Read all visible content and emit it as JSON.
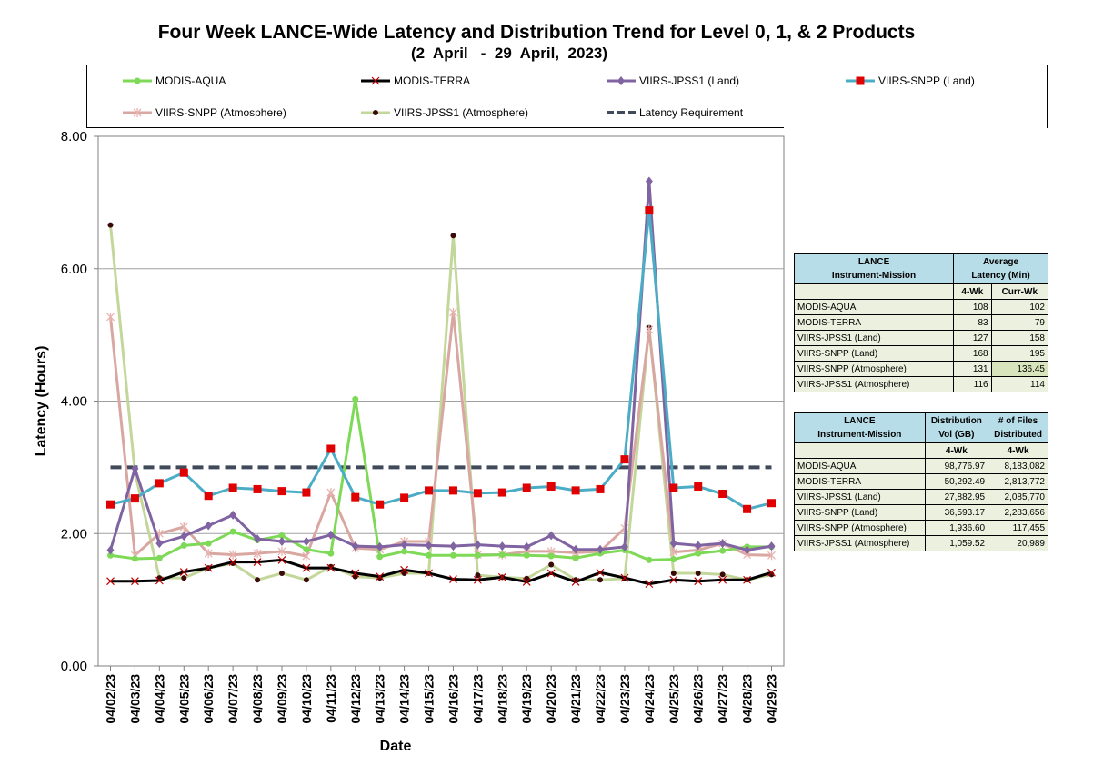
{
  "chart_data": {
    "type": "line",
    "title": "Four Week LANCE-Wide Latency and Distribution Trend for Level 0, 1, & 2 Products",
    "subtitle": "(2  April   -  29  April,  2023)",
    "xlabel": "Date",
    "ylabel": "Latency (Hours)",
    "ylim": [
      0,
      8
    ],
    "yticks": [
      "0.00",
      "2.00",
      "4.00",
      "6.00",
      "8.00"
    ],
    "grid": "horizontal",
    "legend_position": "top",
    "categories": [
      "04/02/23",
      "04/03/23",
      "04/04/23",
      "04/05/23",
      "04/06/23",
      "04/07/23",
      "04/08/23",
      "04/09/23",
      "04/10/23",
      "04/11/23",
      "04/12/23",
      "04/13/23",
      "04/14/23",
      "04/15/23",
      "04/16/23",
      "04/17/23",
      "04/18/23",
      "04/19/23",
      "04/20/23",
      "04/21/23",
      "04/22/23",
      "04/23/23",
      "04/24/23",
      "04/25/23",
      "04/26/23",
      "04/27/23",
      "04/28/23",
      "04/29/23"
    ],
    "series": [
      {
        "name": "MODIS-AQUA",
        "color": "#7ed957",
        "marker": "circle",
        "values": [
          1.67,
          1.62,
          1.63,
          1.82,
          1.85,
          2.03,
          1.9,
          1.97,
          1.76,
          1.7,
          4.03,
          1.65,
          1.73,
          1.67,
          1.67,
          1.67,
          1.68,
          1.67,
          1.66,
          1.63,
          1.7,
          1.75,
          1.6,
          1.61,
          1.7,
          1.74,
          1.8,
          1.8
        ]
      },
      {
        "name": "MODIS-TERRA",
        "color": "#000000",
        "marker": "x",
        "values": [
          1.28,
          1.28,
          1.29,
          1.42,
          1.48,
          1.57,
          1.57,
          1.6,
          1.48,
          1.48,
          1.4,
          1.35,
          1.45,
          1.4,
          1.31,
          1.3,
          1.34,
          1.27,
          1.4,
          1.27,
          1.41,
          1.33,
          1.24,
          1.3,
          1.28,
          1.3,
          1.3,
          1.41
        ]
      },
      {
        "name": "VIIRS-JPSS1 (Land)",
        "color": "#8064a2",
        "marker": "diamond",
        "values": [
          1.75,
          2.98,
          1.85,
          1.96,
          2.12,
          2.28,
          1.92,
          1.88,
          1.88,
          1.98,
          1.81,
          1.8,
          1.83,
          1.82,
          1.81,
          1.83,
          1.81,
          1.8,
          1.97,
          1.76,
          1.76,
          1.8,
          7.32,
          1.85,
          1.82,
          1.85,
          1.75,
          1.81
        ]
      },
      {
        "name": "VIIRS-SNPP (Land)",
        "color": "#4bacc6",
        "marker": "square",
        "values": [
          2.44,
          2.53,
          2.76,
          2.92,
          2.57,
          2.69,
          2.67,
          2.64,
          2.62,
          3.28,
          2.55,
          2.44,
          2.54,
          2.65,
          2.65,
          2.61,
          2.62,
          2.69,
          2.71,
          2.65,
          2.67,
          3.12,
          6.88,
          2.69,
          2.71,
          2.6,
          2.37,
          2.46
        ]
      },
      {
        "name": "VIIRS-SNPP (Atmosphere)",
        "color": "#d9a7a2",
        "marker": "asterisk",
        "values": [
          5.27,
          1.67,
          2.0,
          2.1,
          1.7,
          1.68,
          1.7,
          1.73,
          1.66,
          2.62,
          1.78,
          1.76,
          1.88,
          1.88,
          5.34,
          1.68,
          1.68,
          1.73,
          1.73,
          1.71,
          1.73,
          2.08,
          5.08,
          1.72,
          1.75,
          1.85,
          1.68,
          1.67
        ]
      },
      {
        "name": "VIIRS-JPSS1 (Atmosphere)",
        "color": "#c4d79b",
        "marker": "dot",
        "values": [
          6.66,
          2.92,
          1.33,
          1.33,
          1.48,
          1.55,
          1.3,
          1.4,
          1.3,
          1.5,
          1.35,
          1.33,
          1.4,
          1.4,
          6.5,
          1.37,
          1.34,
          1.32,
          1.53,
          1.3,
          1.3,
          1.32,
          5.11,
          1.4,
          1.4,
          1.38,
          1.3,
          1.38
        ]
      },
      {
        "name": "Latency Requirement",
        "color": "#404a5a",
        "marker": "dash",
        "values": [
          3,
          3,
          3,
          3,
          3,
          3,
          3,
          3,
          3,
          3,
          3,
          3,
          3,
          3,
          3,
          3,
          3,
          3,
          3,
          3,
          3,
          3,
          3,
          3,
          3,
          3,
          3,
          3
        ]
      }
    ]
  },
  "table1": {
    "h1": "LANCE",
    "h2": "Instrument-Mission",
    "h3": "Average",
    "h4": "Latency (Min)",
    "sub1": "4-Wk",
    "sub2": "Curr-Wk",
    "rows": [
      {
        "name": "MODIS-AQUA",
        "a": "108",
        "b": "102"
      },
      {
        "name": "MODIS-TERRA",
        "a": "83",
        "b": "79"
      },
      {
        "name": "VIIRS-JPSS1 (Land)",
        "a": "127",
        "b": "158"
      },
      {
        "name": "VIIRS-SNPP (Land)",
        "a": "168",
        "b": "195"
      },
      {
        "name": "VIIRS-SNPP (Atmosphere)",
        "a": "131",
        "b": "136.45"
      },
      {
        "name": "VIIRS-JPSS1 (Atmosphere)",
        "a": "116",
        "b": "114"
      }
    ]
  },
  "table2": {
    "h1": "LANCE",
    "h2": "Instrument-Mission",
    "h3": "Distribution",
    "h4": "Vol (GB)",
    "h5": "# of Files",
    "h6": "Distributed",
    "sub1": "4-Wk",
    "sub2": "4-Wk",
    "rows": [
      {
        "name": "MODIS-AQUA",
        "a": "98,776.97",
        "b": "8,183,082"
      },
      {
        "name": "MODIS-TERRA",
        "a": "50,292.49",
        "b": "2,813,772"
      },
      {
        "name": "VIIRS-JPSS1 (Land)",
        "a": "27,882.95",
        "b": "2,085,770"
      },
      {
        "name": "VIIRS-SNPP (Land)",
        "a": "36,593.17",
        "b": "2,283,656"
      },
      {
        "name": "VIIRS-SNPP (Atmosphere)",
        "a": "1,936.60",
        "b": "117,455"
      },
      {
        "name": "VIIRS-JPSS1 (Atmosphere)",
        "a": "1,059.52",
        "b": "20,989"
      }
    ]
  }
}
